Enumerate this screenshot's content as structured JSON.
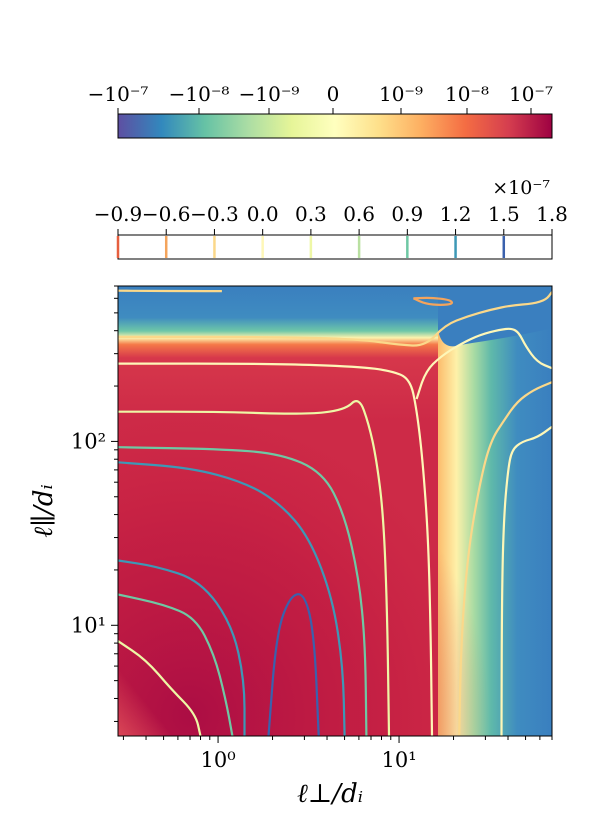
{
  "chart_data": {
    "type": "heatmap",
    "colorbars": [
      {
        "name": "symlog",
        "tick_labels": [
          "−10⁻⁷",
          "−10⁻⁸",
          "−10⁻⁹",
          "0",
          "10⁻⁹",
          "10⁻⁸",
          "10⁻⁷"
        ],
        "colormap": "Spectral_r",
        "scale": "symlog"
      },
      {
        "name": "contours",
        "tick_labels": [
          "−0.9",
          "−0.6",
          "−0.3",
          "0.0",
          "0.3",
          "0.6",
          "0.9",
          "1.2",
          "1.5",
          "1.8"
        ],
        "ticks": [
          -0.9,
          -0.6,
          -0.3,
          0.0,
          0.3,
          0.6,
          0.9,
          1.2,
          1.5,
          1.8
        ],
        "multiplier": "×10⁻⁷",
        "level_colors": [
          "#e65f3f",
          "#f4a45c",
          "#fbd88a",
          "#fef7b8",
          "#eef7a6",
          "#b9e0a1",
          "#6fc8a4",
          "#3d98b6",
          "#3a61ad"
        ]
      }
    ],
    "xlabel": "ℓ⊥/dᵢ",
    "ylabel": "ℓ∥/dᵢ",
    "xscale": "log",
    "yscale": "log",
    "xlim": [
      0.28,
      70
    ],
    "ylim": [
      2.5,
      700
    ],
    "xtick_labels": [
      {
        "value": 1,
        "label": "10⁰"
      },
      {
        "value": 10,
        "label": "10¹"
      }
    ],
    "ytick_labels": [
      {
        "value": 10,
        "label": "10¹"
      },
      {
        "value": 100,
        "label": "10²"
      }
    ],
    "contours": [
      {
        "level": 1.5,
        "color": "#3a61ad",
        "points": [
          [
            1.9,
            2.5
          ],
          [
            2.1,
            9
          ],
          [
            2.5,
            14.5
          ],
          [
            3.0,
            15
          ],
          [
            3.4,
            9
          ],
          [
            3.6,
            2.5
          ]
        ]
      },
      {
        "level": 1.2,
        "color": "#3d98b6",
        "points": [
          [
            0.28,
            22.5
          ],
          [
            0.45,
            21
          ],
          [
            0.8,
            17.5
          ],
          [
            1.2,
            10
          ],
          [
            1.4,
            5
          ],
          [
            1.4,
            2.5
          ]
        ]
      },
      {
        "level": 1.2,
        "color": "#3d98b6",
        "points": [
          [
            0.28,
            77
          ],
          [
            0.7,
            72
          ],
          [
            1.4,
            60
          ],
          [
            2.2,
            46
          ],
          [
            3.2,
            30
          ],
          [
            4.3,
            14
          ],
          [
            4.9,
            6
          ],
          [
            5.0,
            2.5
          ]
        ]
      },
      {
        "level": 0.9,
        "color": "#6fc8a4",
        "points": [
          [
            0.28,
            14.7
          ],
          [
            0.5,
            13
          ],
          [
            0.75,
            11
          ],
          [
            0.95,
            7
          ],
          [
            1.1,
            4
          ],
          [
            1.2,
            2.5
          ]
        ]
      },
      {
        "level": 0.9,
        "color": "#6fc8a4",
        "points": [
          [
            0.28,
            93
          ],
          [
            1.0,
            91
          ],
          [
            2.2,
            86
          ],
          [
            3.8,
            68
          ],
          [
            5.0,
            40
          ],
          [
            6.0,
            18
          ],
          [
            6.5,
            8
          ],
          [
            6.6,
            2.5
          ]
        ]
      },
      {
        "level": 0.6,
        "color": "#eef7a6",
        "points": [
          [
            0.28,
            8.2
          ],
          [
            0.4,
            6.5
          ],
          [
            0.55,
            4.5
          ],
          [
            0.75,
            3.3
          ],
          [
            0.8,
            2.5
          ]
        ]
      },
      {
        "level": 0.6,
        "color": "#eef7a6",
        "points": [
          [
            0.28,
            145
          ],
          [
            1.0,
            145
          ],
          [
            3.0,
            140
          ],
          [
            5.0,
            148
          ],
          [
            6.0,
            175
          ],
          [
            6.8,
            125
          ],
          [
            7.5,
            80
          ],
          [
            8.2,
            40
          ],
          [
            8.6,
            12
          ],
          [
            8.8,
            2.5
          ]
        ]
      },
      {
        "level": 0.3,
        "color": "#fef7b8",
        "points": [
          [
            0.28,
            265
          ],
          [
            2.0,
            265
          ],
          [
            6.0,
            255
          ],
          [
            9.0,
            242
          ],
          [
            11.5,
            220
          ],
          [
            12.5,
            150
          ],
          [
            13.5,
            80
          ],
          [
            14.5,
            30
          ],
          [
            15,
            8
          ],
          [
            15.2,
            2.5
          ]
        ]
      },
      {
        "level": 0.3,
        "color": "#fef7b8",
        "points": [
          [
            12.5,
            170
          ],
          [
            14,
            240
          ],
          [
            17,
            290
          ],
          [
            22,
            340
          ],
          [
            28,
            380
          ],
          [
            36,
            405
          ],
          [
            42,
            412
          ],
          [
            46,
            390
          ],
          [
            50,
            330
          ],
          [
            58,
            270
          ],
          [
            70,
            250
          ]
        ]
      },
      {
        "level": 0.0,
        "color": "#fbd88a",
        "points": [
          [
            0.28,
            370
          ],
          [
            2.0,
            370
          ],
          [
            6.0,
            360
          ],
          [
            10,
            335
          ],
          [
            14,
            330
          ],
          [
            18,
            430
          ],
          [
            24,
            480
          ],
          [
            32,
            520
          ],
          [
            42,
            550
          ],
          [
            55,
            560
          ],
          [
            65,
            590
          ],
          [
            70,
            650
          ]
        ]
      },
      {
        "level": 0.0,
        "color": "#fbd88a",
        "points": [
          [
            70,
            210
          ],
          [
            55,
            190
          ],
          [
            45,
            165
          ],
          [
            38,
            130
          ],
          [
            32,
            100
          ],
          [
            28,
            60
          ],
          [
            24,
            25
          ],
          [
            22,
            8
          ],
          [
            21.5,
            2.5
          ]
        ]
      },
      {
        "level": 0.0,
        "color": "#fbd88a",
        "points": [
          [
            0.28,
            660
          ],
          [
            0.4,
            658
          ],
          [
            0.7,
            657
          ],
          [
            1.05,
            657
          ]
        ]
      },
      {
        "level": -0.3,
        "color": "#f4a45c",
        "points": [
          [
            12,
            600
          ],
          [
            14,
            560
          ],
          [
            17,
            550
          ],
          [
            20,
            560
          ],
          [
            19,
            590
          ],
          [
            15,
            605
          ],
          [
            12,
            600
          ]
        ]
      },
      {
        "level": 0.3,
        "color": "#fef7b8",
        "points": [
          [
            70,
            120
          ],
          [
            58,
            105
          ],
          [
            48,
            100
          ],
          [
            42,
            90
          ],
          [
            40,
            70
          ],
          [
            38,
            40
          ],
          [
            37,
            15
          ],
          [
            36.8,
            2.5
          ]
        ]
      }
    ]
  }
}
